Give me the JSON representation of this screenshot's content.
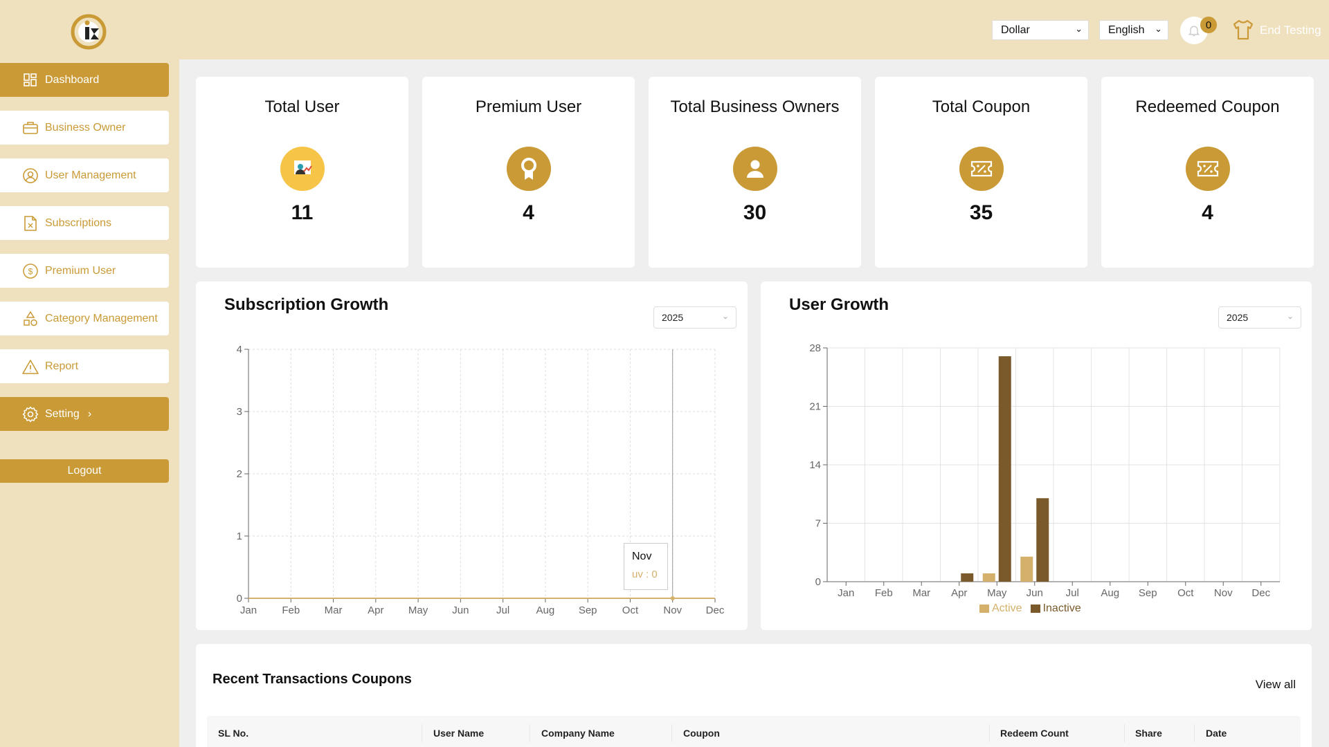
{
  "header": {
    "currency": "Dollar",
    "language": "English",
    "notification_count": "0",
    "user_name": "End Testing"
  },
  "sidebar": {
    "items": [
      {
        "label": "Dashboard",
        "icon": "dashboard-icon",
        "active": true
      },
      {
        "label": "Business Owner",
        "icon": "briefcase-icon"
      },
      {
        "label": "User Management",
        "icon": "user-circle-icon"
      },
      {
        "label": "Subscriptions",
        "icon": "document-icon"
      },
      {
        "label": "Premium User",
        "icon": "dollar-icon"
      },
      {
        "label": "Category Management",
        "icon": "shapes-icon"
      },
      {
        "label": "Report",
        "icon": "warning-icon"
      },
      {
        "label": "Setting",
        "icon": "gear-icon",
        "active": true,
        "arrow": "›"
      }
    ],
    "logout": "Logout"
  },
  "stats": [
    {
      "title": "Total User",
      "value": "11",
      "icon": "user-chart-icon"
    },
    {
      "title": "Premium User",
      "value": "4",
      "icon": "award-icon"
    },
    {
      "title": "Total Business Owners",
      "value": "30",
      "icon": "user-icon"
    },
    {
      "title": "Total Coupon",
      "value": "35",
      "icon": "ticket-icon"
    },
    {
      "title": "Redeemed Coupon",
      "value": "4",
      "icon": "ticket-icon"
    }
  ],
  "subscription_growth": {
    "title": "Subscription Growth",
    "year": "2025",
    "tooltip": {
      "label": "Nov",
      "series": "uv",
      "value": "0"
    }
  },
  "user_growth": {
    "title": "User Growth",
    "year": "2025"
  },
  "chart_data": [
    {
      "type": "line",
      "title": "Subscription Growth",
      "categories": [
        "Jan",
        "Feb",
        "Mar",
        "Apr",
        "May",
        "Jun",
        "Jul",
        "Aug",
        "Sep",
        "Oct",
        "Nov",
        "Dec"
      ],
      "series": [
        {
          "name": "uv",
          "values": [
            0,
            0,
            0,
            0,
            0,
            0,
            0,
            0,
            0,
            0,
            0,
            0
          ]
        }
      ],
      "yticks": [
        0,
        1,
        2,
        3,
        4
      ],
      "ylim": [
        0,
        4
      ],
      "grid": true
    },
    {
      "type": "bar",
      "title": "User Growth",
      "categories": [
        "Jan",
        "Feb",
        "Mar",
        "Apr",
        "May",
        "Jun",
        "Jul",
        "Aug",
        "Sep",
        "Oct",
        "Nov",
        "Dec"
      ],
      "series": [
        {
          "name": "Active",
          "color": "#d4b06a",
          "values": [
            0,
            0,
            0,
            0,
            1,
            3,
            0,
            0,
            0,
            0,
            0,
            0
          ]
        },
        {
          "name": "Inactive",
          "color": "#7a5a2a",
          "values": [
            0,
            0,
            0,
            1,
            27,
            10,
            0,
            0,
            0,
            0,
            0,
            0
          ]
        }
      ],
      "yticks": [
        0,
        7,
        14,
        21,
        28
      ],
      "ylim": [
        0,
        28
      ],
      "grid": true,
      "legend": "bottom"
    }
  ],
  "transactions": {
    "title": "Recent Transactions Coupons",
    "view_all": "View all",
    "columns": [
      "SL No.",
      "User Name",
      "Company Name",
      "Coupon",
      "Redeem Count",
      "Share",
      "Date"
    ]
  },
  "colors": {
    "accent": "#c99a35",
    "sidebar_bg": "#efe0be"
  }
}
